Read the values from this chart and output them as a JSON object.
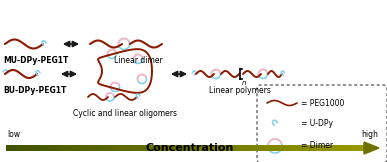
{
  "bg_color": "#ffffff",
  "polymer_color": "#8B1A00",
  "dimer_color_outer": "#87CEEB",
  "dimer_color_inner": "#FFB6C1",
  "legend_labels": [
    "= PEG1000",
    "= U-DPy",
    "= Dimer"
  ],
  "mu_label": "MU-DPy-PEG1T",
  "bu_label": "BU-DPy-PEG1T",
  "linear_dimer_label": "Linear dimer",
  "cyclic_label": "Cyclic and linear oligomers",
  "linear_poly_label": "Linear polymers",
  "concentration_label": "Concentration",
  "low_label": "low",
  "high_label": "high",
  "small_fontsize": 5.5,
  "conc_fontsize": 8,
  "arrow_olive": "#808000",
  "arrow_dark": "#1a1a1a"
}
